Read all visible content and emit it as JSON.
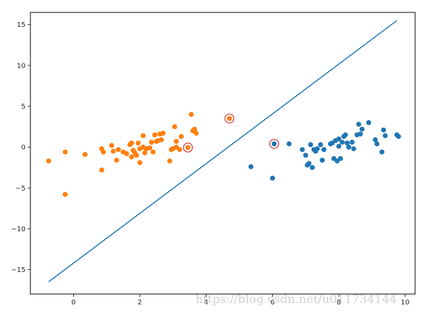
{
  "chart_data": {
    "type": "scatter",
    "title": "",
    "xlabel": "",
    "ylabel": "",
    "xlim": [
      -1.3,
      10.3
    ],
    "ylim": [
      -18.0,
      16.5
    ],
    "xticks": [
      0,
      2,
      4,
      6,
      8,
      10
    ],
    "yticks": [
      -15,
      -10,
      -5,
      0,
      5,
      10,
      15
    ],
    "grid": false,
    "legend": "none",
    "colors": {
      "class_a": "#ff7f0e",
      "class_b": "#1f77b4",
      "line": "#1f77b4",
      "support_ring": "#d62728"
    },
    "series": [
      {
        "color": "#ff7f0e",
        "points": [
          [
            -0.75,
            -1.7
          ],
          [
            -0.25,
            -0.6
          ],
          [
            -0.25,
            -5.8
          ],
          [
            0.35,
            -0.9
          ],
          [
            0.85,
            -0.2
          ],
          [
            0.85,
            -2.8
          ],
          [
            0.9,
            -0.6
          ],
          [
            1.15,
            0.2
          ],
          [
            1.2,
            -0.5
          ],
          [
            1.3,
            -1.6
          ],
          [
            1.35,
            -0.3
          ],
          [
            1.5,
            -0.6
          ],
          [
            1.6,
            -0.8
          ],
          [
            1.7,
            0.3
          ],
          [
            1.75,
            0.5
          ],
          [
            1.75,
            -1.2
          ],
          [
            1.8,
            -0.4
          ],
          [
            1.85,
            -0.7
          ],
          [
            1.9,
            -1.0
          ],
          [
            1.95,
            0.5
          ],
          [
            2.0,
            -0.2
          ],
          [
            2.0,
            -1.9
          ],
          [
            2.1,
            0.0
          ],
          [
            2.1,
            1.4
          ],
          [
            2.15,
            -0.7
          ],
          [
            2.2,
            -0.2
          ],
          [
            2.3,
            -0.1
          ],
          [
            2.35,
            0.6
          ],
          [
            2.4,
            -0.6
          ],
          [
            2.45,
            1.5
          ],
          [
            2.5,
            0.7
          ],
          [
            2.55,
            0.8
          ],
          [
            2.6,
            1.6
          ],
          [
            2.65,
            0.9
          ],
          [
            2.7,
            1.7
          ],
          [
            2.9,
            -1.7
          ],
          [
            2.95,
            -0.3
          ],
          [
            3.0,
            -0.2
          ],
          [
            3.05,
            2.5
          ],
          [
            3.1,
            0.0
          ],
          [
            3.1,
            0.7
          ],
          [
            3.2,
            -0.3
          ],
          [
            3.25,
            1.3
          ],
          [
            3.45,
            -0.05
          ],
          [
            3.55,
            4.0
          ],
          [
            3.6,
            2.0
          ],
          [
            3.65,
            2.2
          ],
          [
            3.7,
            1.7
          ],
          [
            4.7,
            3.5
          ]
        ]
      },
      {
        "color": "#1f77b4",
        "points": [
          [
            5.35,
            -2.4
          ],
          [
            6.0,
            -3.8
          ],
          [
            6.05,
            0.4
          ],
          [
            6.5,
            0.4
          ],
          [
            6.9,
            -0.3
          ],
          [
            7.0,
            -1.0
          ],
          [
            7.05,
            -2.2
          ],
          [
            7.1,
            -2.0
          ],
          [
            7.15,
            0.3
          ],
          [
            7.2,
            -2.5
          ],
          [
            7.25,
            -0.3
          ],
          [
            7.3,
            -0.5
          ],
          [
            7.35,
            -0.2
          ],
          [
            7.45,
            0.3
          ],
          [
            7.5,
            -1.6
          ],
          [
            7.55,
            -0.3
          ],
          [
            7.75,
            0.4
          ],
          [
            7.8,
            0.5
          ],
          [
            7.85,
            -1.4
          ],
          [
            7.9,
            0.8
          ],
          [
            7.95,
            -1.7
          ],
          [
            8.0,
            0.1
          ],
          [
            8.0,
            1.0
          ],
          [
            8.05,
            -1.4
          ],
          [
            8.1,
            0.6
          ],
          [
            8.15,
            1.3
          ],
          [
            8.2,
            1.5
          ],
          [
            8.25,
            0.5
          ],
          [
            8.3,
            0.0
          ],
          [
            8.4,
            0.6
          ],
          [
            8.45,
            -0.2
          ],
          [
            8.55,
            1.5
          ],
          [
            8.6,
            2.8
          ],
          [
            8.65,
            1.6
          ],
          [
            8.7,
            2.2
          ],
          [
            8.9,
            3.0
          ],
          [
            9.1,
            0.9
          ],
          [
            9.15,
            0.4
          ],
          [
            9.3,
            -0.6
          ],
          [
            9.35,
            2.1
          ],
          [
            9.4,
            1.4
          ],
          [
            9.75,
            1.5
          ],
          [
            9.8,
            1.3
          ]
        ]
      }
    ],
    "support_vectors": [
      [
        3.45,
        -0.05
      ],
      [
        4.7,
        3.5
      ],
      [
        6.05,
        0.4
      ]
    ],
    "decision_line": {
      "x": [
        -0.75,
        9.75
      ],
      "y": [
        -16.5,
        15.5
      ]
    },
    "watermark": "https://blog.csdn.net/u011734144"
  }
}
